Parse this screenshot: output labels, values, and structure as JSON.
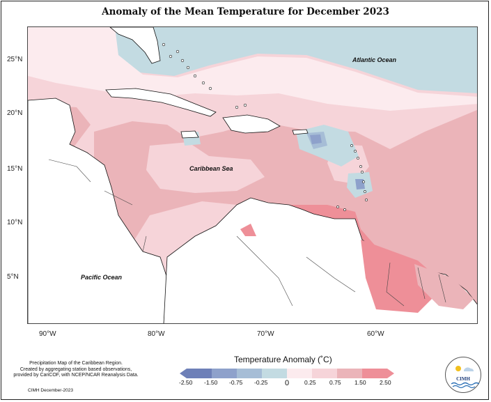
{
  "title": "Anomaly of the Mean Temperature for December 2023",
  "map": {
    "lat_labels": [
      "25°N",
      "20°N",
      "15°N",
      "10°N",
      "5°N"
    ],
    "lon_labels": [
      "90°W",
      "80°W",
      "70°W",
      "60°W"
    ],
    "region_labels": {
      "atlantic": "Atlantic Ocean",
      "caribbean": "Caribbean Sea",
      "pacific": "Pacific Ocean"
    },
    "colors": {
      "neg250": "#6e80b8",
      "neg150": "#8ea1cb",
      "neg075": "#a6bdd6",
      "neg025": "#c3dbe2",
      "pos000": "#fcebee",
      "pos025": "#f6d4d9",
      "pos075": "#ebb4b9",
      "pos150": "#ee8f98",
      "land": "#ffffff",
      "coast": "#111111"
    }
  },
  "legend": {
    "title": "Temperature Anomaly (˚C)",
    "ticks": [
      "-2.50",
      "-1.50",
      "-0.75",
      "-0.25",
      "0",
      "0.25",
      "0.75",
      "1.50",
      "2.50"
    ],
    "bins": [
      {
        "from": -2.5,
        "to": -1.5,
        "color": "#6e80b8"
      },
      {
        "from": -1.5,
        "to": -0.75,
        "color": "#8ea1cb"
      },
      {
        "from": -0.75,
        "to": -0.25,
        "color": "#a6bdd6"
      },
      {
        "from": -0.25,
        "to": 0,
        "color": "#c3dbe2"
      },
      {
        "from": 0,
        "to": 0.25,
        "color": "#fcebee"
      },
      {
        "from": 0.25,
        "to": 0.75,
        "color": "#f6d4d9"
      },
      {
        "from": 0.75,
        "to": 1.5,
        "color": "#ebb4b9"
      },
      {
        "from": 1.5,
        "to": 2.5,
        "color": "#ee8f98"
      }
    ]
  },
  "credit": {
    "line1": "Precipitation Map of the Caribbean Region.",
    "line2": "Created by aggregating station based observations,",
    "line3": "provided by CariCOF, with NCEP/NCAR Reanalysis Data.",
    "footer": "CIMH December-2023"
  },
  "logo": {
    "text": "CIMH"
  }
}
